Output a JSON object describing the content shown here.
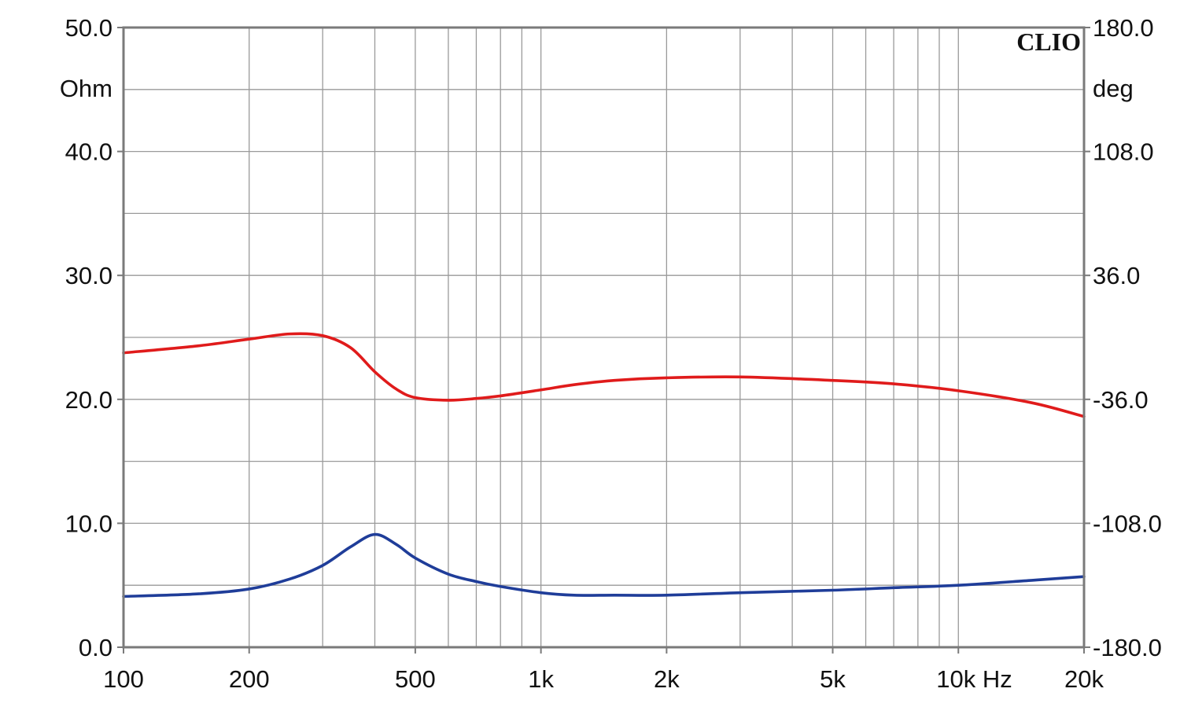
{
  "chart_data": {
    "type": "line",
    "brand": "CLIO",
    "x_scale": "log",
    "xlim": [
      100,
      20000
    ],
    "x_ticks": [
      {
        "value": 100,
        "label": "100"
      },
      {
        "value": 200,
        "label": "200"
      },
      {
        "value": 500,
        "label": "500"
      },
      {
        "value": 1000,
        "label": "1k"
      },
      {
        "value": 2000,
        "label": "2k"
      },
      {
        "value": 5000,
        "label": "5k"
      },
      {
        "value": 10000,
        "label": "10k Hz"
      },
      {
        "value": 20000,
        "label": "20k"
      }
    ],
    "y_left": {
      "unit": "Ohm",
      "lim": [
        0,
        50
      ],
      "ticks": [
        {
          "value": 0,
          "label": "0.0"
        },
        {
          "value": 10,
          "label": "10.0"
        },
        {
          "value": 20,
          "label": "20.0"
        },
        {
          "value": 30,
          "label": "30.0"
        },
        {
          "value": 40,
          "label": "40.0"
        },
        {
          "value": 50,
          "label": "50.0"
        }
      ]
    },
    "y_right": {
      "unit": "deg",
      "lim": [
        -180,
        180
      ],
      "ticks": [
        {
          "value": -180,
          "label": "-180.0"
        },
        {
          "value": -108,
          "label": "-108.0"
        },
        {
          "value": -36,
          "label": "-36.0"
        },
        {
          "value": 36,
          "label": "36.0"
        },
        {
          "value": 108,
          "label": "108.0"
        },
        {
          "value": 180,
          "label": "180.0"
        }
      ]
    },
    "grid": true,
    "series": [
      {
        "axis": "left",
        "color": "#1f3d99",
        "x": [
          100,
          150,
          200,
          250,
          300,
          350,
          400,
          450,
          500,
          600,
          700,
          800,
          1000,
          1200,
          1500,
          2000,
          3000,
          5000,
          7000,
          10000,
          15000,
          20000
        ],
        "y": [
          4.1,
          4.3,
          4.7,
          5.5,
          6.6,
          8.1,
          9.1,
          8.3,
          7.2,
          5.9,
          5.3,
          4.9,
          4.4,
          4.2,
          4.2,
          4.2,
          4.4,
          4.6,
          4.8,
          5.0,
          5.4,
          5.7
        ]
      },
      {
        "axis": "right",
        "color": "#e01b1b",
        "x": [
          100,
          150,
          200,
          250,
          300,
          350,
          400,
          450,
          500,
          600,
          700,
          800,
          1000,
          1200,
          1500,
          2000,
          3000,
          5000,
          7000,
          10000,
          15000,
          20000
        ],
        "y": [
          -9,
          -5,
          -1,
          2,
          1,
          -6,
          -20,
          -30,
          -35,
          -36.5,
          -35.5,
          -34,
          -30.5,
          -27.5,
          -25,
          -23.5,
          -23,
          -25,
          -27,
          -31,
          -38,
          -46
        ]
      }
    ]
  }
}
